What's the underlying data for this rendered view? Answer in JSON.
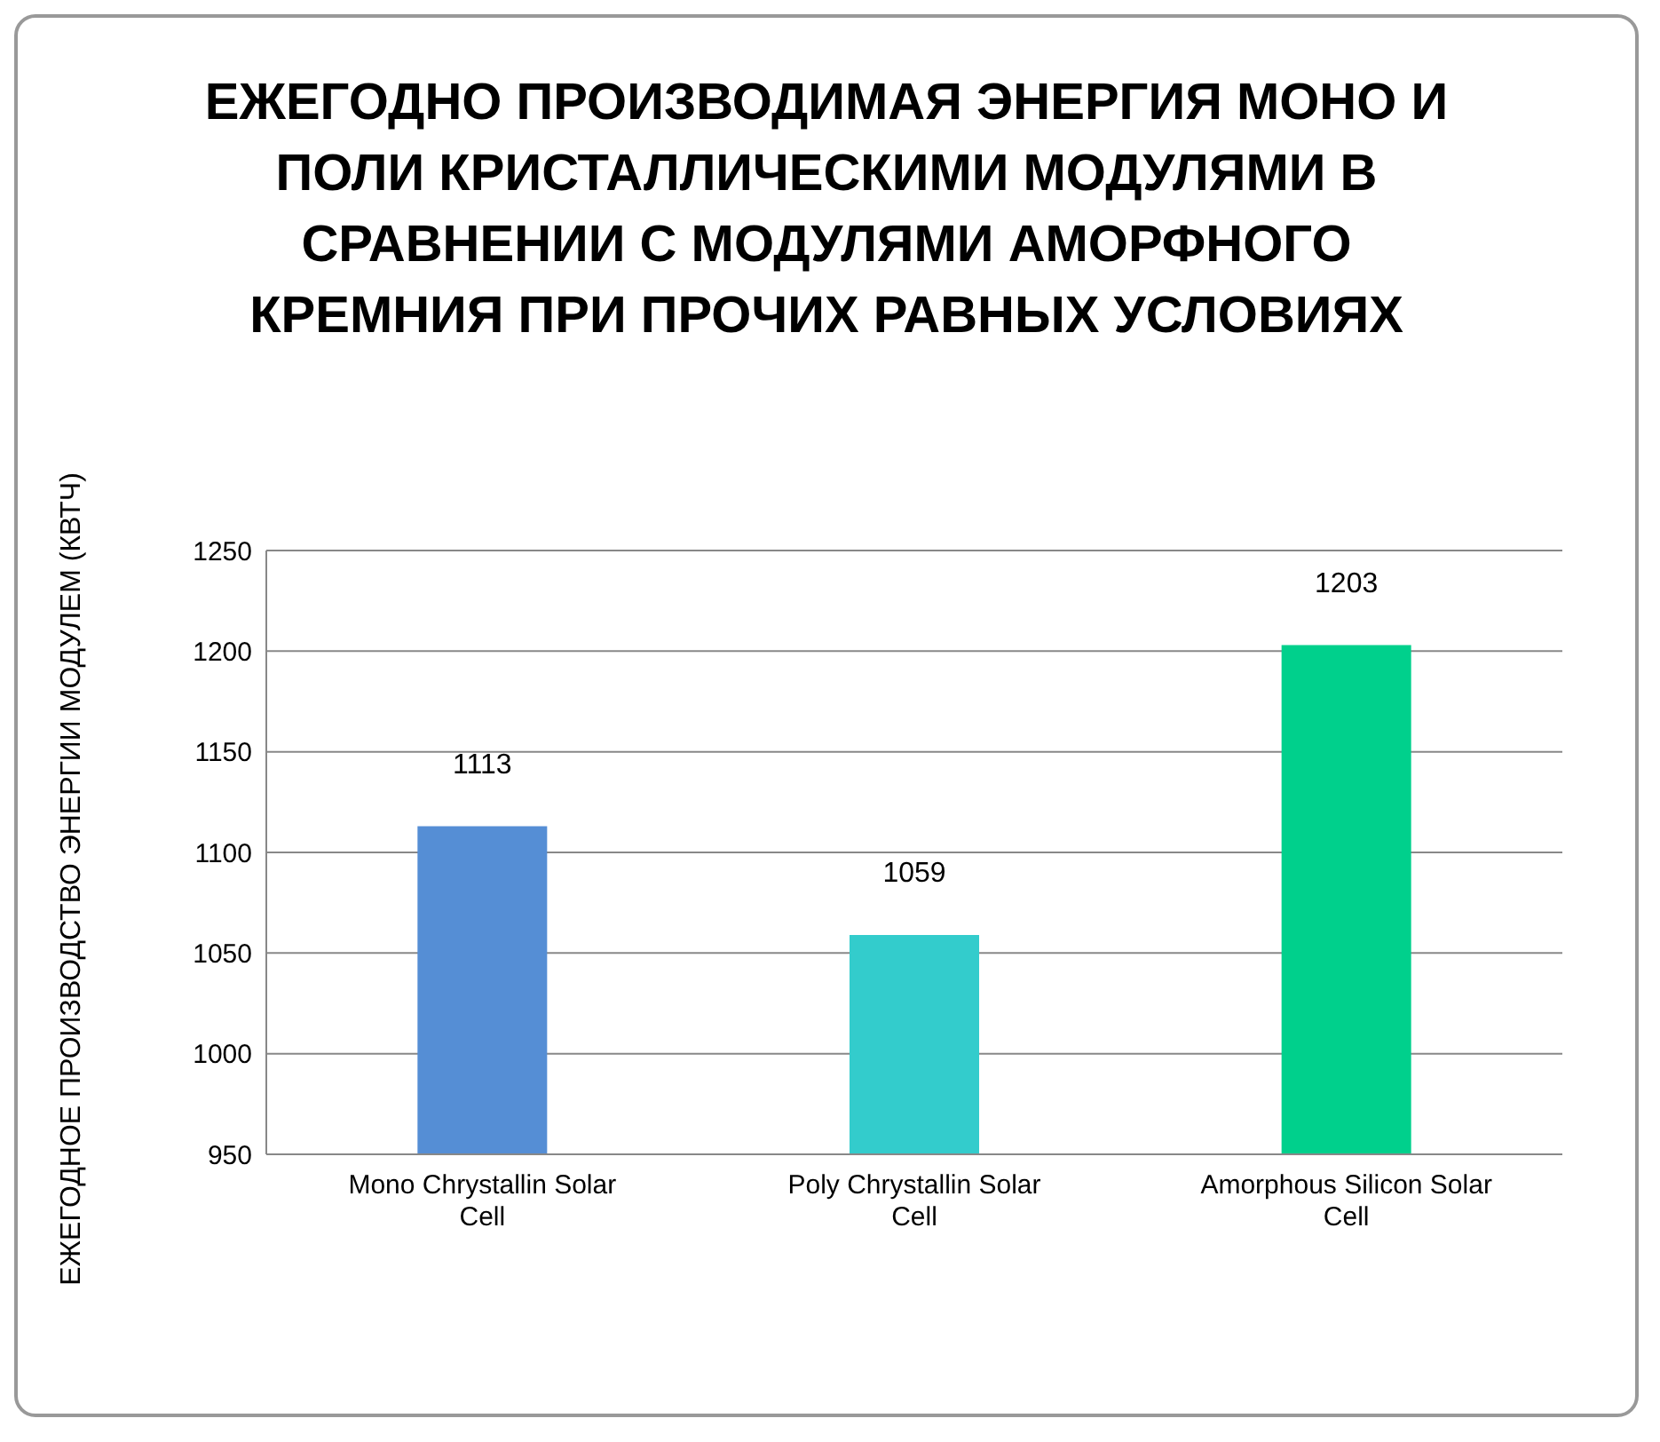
{
  "chart_data": {
    "type": "bar",
    "title": "ЕЖЕГОДНО ПРОИЗВОДИМАЯ ЭНЕРГИЯ МОНО И ПОЛИ КРИСТАЛЛИЧЕСКИМИ МОДУЛЯМИ В СРАВНЕНИИ С МОДУЛЯМИ АМОРФНОГО КРЕМНИЯ ПРИ ПРОЧИХ РАВНЫХ УСЛОВИЯХ",
    "ylabel": "ЕЖЕГОДНОЕ ПРОИЗВОДСТВО ЭНЕРГИИ МОДУЛЕМ (КВТЧ)",
    "categories": [
      "Mono Chrystallin Solar Cell",
      "Poly Chrystallin Solar Cell",
      "Amorphous Silicon Solar Cell"
    ],
    "values": [
      1113,
      1059,
      1203
    ],
    "colors": [
      "#558ed5",
      "#33cccc",
      "#00d08c"
    ],
    "ylim": [
      950,
      1250
    ],
    "yticks": [
      950,
      1000,
      1050,
      1100,
      1150,
      1200,
      1250
    ],
    "grid": "y",
    "data_labels": true
  }
}
